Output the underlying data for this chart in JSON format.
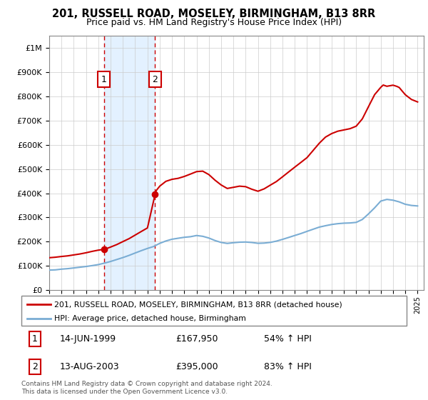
{
  "title_line1": "201, RUSSELL ROAD, MOSELEY, BIRMINGHAM, B13 8RR",
  "title_line2": "Price paid vs. HM Land Registry's House Price Index (HPI)",
  "legend_line1": "201, RUSSELL ROAD, MOSELEY, BIRMINGHAM, B13 8RR (detached house)",
  "legend_line2": "HPI: Average price, detached house, Birmingham",
  "footnote": "Contains HM Land Registry data © Crown copyright and database right 2024.\nThis data is licensed under the Open Government Licence v3.0.",
  "transaction1_date": "14-JUN-1999",
  "transaction1_price": "£167,950",
  "transaction1_hpi": "54% ↑ HPI",
  "transaction2_date": "13-AUG-2003",
  "transaction2_price": "£395,000",
  "transaction2_hpi": "83% ↑ HPI",
  "sale1_year": 1999.45,
  "sale1_price": 167950,
  "sale2_year": 2003.62,
  "sale2_price": 395000,
  "red_color": "#cc0000",
  "blue_color": "#7aadd4",
  "shading_color": "#ddeeff",
  "grid_color": "#cccccc",
  "ylim_min": 0,
  "ylim_max": 1050000,
  "hpi_years": [
    1995,
    1995.5,
    1996,
    1996.5,
    1997,
    1997.5,
    1998,
    1998.5,
    1999,
    1999.5,
    2000,
    2000.5,
    2001,
    2001.5,
    2002,
    2002.5,
    2003,
    2003.5,
    2004,
    2004.5,
    2005,
    2005.5,
    2006,
    2006.5,
    2007,
    2007.5,
    2008,
    2008.5,
    2009,
    2009.5,
    2010,
    2010.5,
    2011,
    2011.5,
    2012,
    2012.5,
    2013,
    2013.5,
    2014,
    2014.5,
    2015,
    2015.5,
    2016,
    2016.5,
    2017,
    2017.5,
    2018,
    2018.5,
    2019,
    2019.5,
    2020,
    2020.5,
    2021,
    2021.5,
    2022,
    2022.5,
    2023,
    2023.5,
    2024,
    2024.5,
    2025
  ],
  "hpi_values": [
    82000,
    83000,
    86000,
    88000,
    91000,
    94000,
    97000,
    101000,
    105000,
    111000,
    118000,
    126000,
    134000,
    143000,
    153000,
    163000,
    172000,
    180000,
    193000,
    203000,
    210000,
    214000,
    218000,
    220000,
    225000,
    222000,
    215000,
    205000,
    197000,
    193000,
    196000,
    198000,
    199000,
    197000,
    194000,
    195000,
    198000,
    203000,
    210000,
    218000,
    226000,
    234000,
    243000,
    252000,
    261000,
    267000,
    272000,
    275000,
    277000,
    278000,
    280000,
    292000,
    315000,
    340000,
    368000,
    375000,
    372000,
    365000,
    355000,
    350000,
    348000
  ],
  "red_years": [
    1995,
    1995.5,
    1996,
    1996.5,
    1997,
    1997.5,
    1998,
    1998.5,
    1999,
    1999.45,
    1999.5,
    2000,
    2000.5,
    2001,
    2001.5,
    2002,
    2002.5,
    2003,
    2003.62,
    2003.7,
    2004,
    2004.5,
    2005,
    2005.5,
    2006,
    2006.5,
    2007,
    2007.5,
    2008,
    2008.5,
    2009,
    2009.5,
    2010,
    2010.5,
    2011,
    2011.5,
    2012,
    2012.5,
    2013,
    2013.5,
    2014,
    2014.5,
    2015,
    2015.5,
    2016,
    2016.5,
    2017,
    2017.5,
    2018,
    2018.5,
    2019,
    2019.5,
    2020,
    2020.5,
    2021,
    2021.5,
    2022,
    2022.2,
    2022.5,
    2023,
    2023.3,
    2023.5,
    2024,
    2024.5,
    2025
  ],
  "red_values": [
    133000,
    135000,
    138000,
    141000,
    145000,
    149000,
    154000,
    160000,
    165000,
    167950,
    168000,
    178000,
    188000,
    200000,
    212000,
    227000,
    242000,
    257000,
    395000,
    410000,
    430000,
    450000,
    458000,
    462000,
    470000,
    480000,
    490000,
    492000,
    478000,
    455000,
    435000,
    420000,
    425000,
    430000,
    428000,
    418000,
    410000,
    420000,
    435000,
    450000,
    470000,
    490000,
    510000,
    530000,
    550000,
    580000,
    610000,
    635000,
    650000,
    660000,
    665000,
    670000,
    680000,
    710000,
    760000,
    810000,
    840000,
    850000,
    845000,
    850000,
    845000,
    840000,
    810000,
    790000,
    780000
  ]
}
